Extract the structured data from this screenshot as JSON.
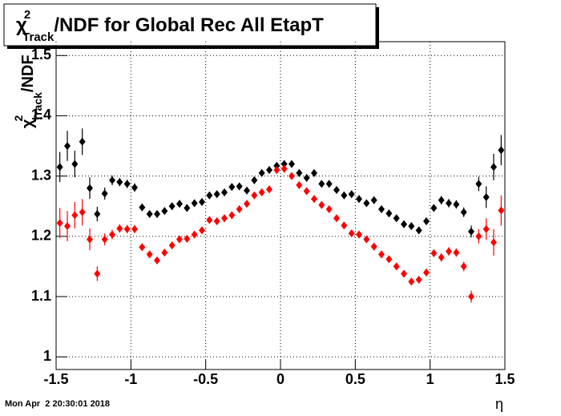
{
  "chart_data": {
    "type": "scatter",
    "title": {
      "symbol": "χ",
      "superscript": "2",
      "subscript": "Track",
      "text": "/NDF for Global Rec All EtapT"
    },
    "y_label": {
      "symbol": "χ",
      "superscript": "2",
      "subscript": "Track",
      "text": "/NDF"
    },
    "x_label": "η",
    "footer": "Mon Apr  2 20:30:01 2018",
    "xlim": [
      -1.5,
      1.5
    ],
    "xticks": [
      -1.5,
      -1,
      -0.5,
      0,
      0.5,
      1,
      1.5
    ],
    "ylim": [
      0.979,
      1.523
    ],
    "yticks": [
      1,
      1.1,
      1.2,
      1.3,
      1.4,
      1.5
    ],
    "grid": true,
    "x": [
      -1.475,
      -1.425,
      -1.375,
      -1.325,
      -1.275,
      -1.225,
      -1.175,
      -1.125,
      -1.075,
      -1.025,
      -0.975,
      -0.925,
      -0.875,
      -0.825,
      -0.775,
      -0.725,
      -0.675,
      -0.625,
      -0.575,
      -0.525,
      -0.475,
      -0.425,
      -0.375,
      -0.325,
      -0.275,
      -0.225,
      -0.175,
      -0.125,
      -0.075,
      -0.025,
      0.025,
      0.075,
      0.125,
      0.175,
      0.225,
      0.275,
      0.325,
      0.375,
      0.425,
      0.475,
      0.525,
      0.575,
      0.625,
      0.675,
      0.725,
      0.775,
      0.825,
      0.875,
      0.925,
      0.975,
      1.025,
      1.075,
      1.125,
      1.175,
      1.225,
      1.275,
      1.325,
      1.375,
      1.425,
      1.475
    ],
    "series": [
      {
        "color": "#000000",
        "values": [
          1.315,
          1.35,
          1.32,
          1.357,
          1.28,
          1.237,
          1.271,
          1.293,
          1.29,
          1.287,
          1.281,
          1.248,
          1.237,
          1.237,
          1.242,
          1.25,
          1.254,
          1.247,
          1.255,
          1.257,
          1.268,
          1.27,
          1.273,
          1.282,
          1.283,
          1.276,
          1.293,
          1.305,
          1.31,
          1.317,
          1.32,
          1.32,
          1.305,
          1.297,
          1.305,
          1.287,
          1.287,
          1.277,
          1.268,
          1.27,
          1.262,
          1.255,
          1.26,
          1.245,
          1.238,
          1.23,
          1.22,
          1.217,
          1.21,
          1.225,
          1.247,
          1.26,
          1.255,
          1.253,
          1.24,
          1.208,
          1.287,
          1.265,
          1.315,
          1.343
        ],
        "errors": [
          0.025,
          0.025,
          0.022,
          0.022,
          0.018,
          0.012,
          0.01,
          0.008,
          0.007,
          0.007,
          0.007,
          0.006,
          0.006,
          0.006,
          0.006,
          0.006,
          0.006,
          0.006,
          0.006,
          0.006,
          0.006,
          0.006,
          0.006,
          0.006,
          0.006,
          0.006,
          0.006,
          0.006,
          0.006,
          0.006,
          0.006,
          0.006,
          0.006,
          0.006,
          0.006,
          0.006,
          0.006,
          0.006,
          0.006,
          0.006,
          0.006,
          0.006,
          0.006,
          0.006,
          0.006,
          0.006,
          0.006,
          0.006,
          0.006,
          0.006,
          0.006,
          0.007,
          0.007,
          0.007,
          0.008,
          0.01,
          0.012,
          0.018,
          0.022,
          0.025
        ]
      },
      {
        "color": "#ff0000",
        "values": [
          1.222,
          1.217,
          1.235,
          1.24,
          1.195,
          1.138,
          1.195,
          1.203,
          1.213,
          1.212,
          1.212,
          1.182,
          1.17,
          1.16,
          1.173,
          1.185,
          1.195,
          1.196,
          1.203,
          1.21,
          1.227,
          1.225,
          1.23,
          1.235,
          1.245,
          1.254,
          1.268,
          1.273,
          1.278,
          1.31,
          1.312,
          1.3,
          1.285,
          1.275,
          1.262,
          1.252,
          1.245,
          1.23,
          1.218,
          1.205,
          1.203,
          1.195,
          1.183,
          1.17,
          1.162,
          1.15,
          1.138,
          1.125,
          1.128,
          1.14,
          1.172,
          1.165,
          1.175,
          1.173,
          1.15,
          1.1,
          1.2,
          1.212,
          1.19,
          1.243
        ],
        "errors": [
          0.025,
          0.025,
          0.022,
          0.022,
          0.018,
          0.012,
          0.01,
          0.008,
          0.007,
          0.007,
          0.007,
          0.006,
          0.006,
          0.006,
          0.006,
          0.006,
          0.006,
          0.006,
          0.006,
          0.006,
          0.006,
          0.006,
          0.006,
          0.006,
          0.006,
          0.006,
          0.006,
          0.006,
          0.006,
          0.006,
          0.006,
          0.006,
          0.006,
          0.006,
          0.006,
          0.006,
          0.006,
          0.006,
          0.006,
          0.006,
          0.006,
          0.006,
          0.006,
          0.006,
          0.006,
          0.006,
          0.006,
          0.006,
          0.006,
          0.006,
          0.006,
          0.007,
          0.007,
          0.007,
          0.008,
          0.01,
          0.012,
          0.018,
          0.022,
          0.025
        ]
      }
    ]
  }
}
